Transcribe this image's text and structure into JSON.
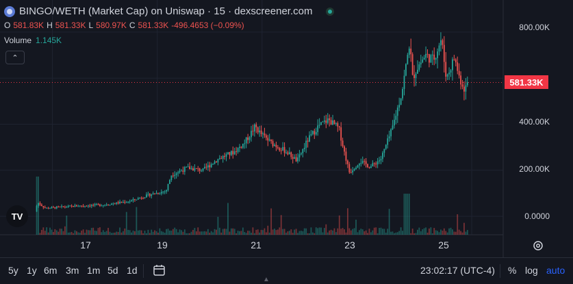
{
  "header": {
    "title": "BINGO/WETH (Market Cap) on Uniswap · 15 · dexscreener.com"
  },
  "ohlc": {
    "o_key": "O",
    "o_val": "581.83K",
    "h_key": "H",
    "h_val": "581.33K",
    "l_key": "L",
    "l_val": "580.97K",
    "c_key": "C",
    "c_val": "581.33K",
    "change": "-496.4653 (−0.09%)"
  },
  "volume": {
    "label": "Volume",
    "value": "1.145K"
  },
  "price_axis": [
    "800.00K",
    "400.00K",
    "200.00K",
    "0.0000"
  ],
  "price_axis_ticks": [
    800000,
    400000,
    200000,
    0
  ],
  "current_price": "581.33K",
  "current_price_value": 581330,
  "date_axis": [
    "17",
    "19",
    "21",
    "23",
    "25"
  ],
  "date_axis_ticks": [
    17,
    19,
    21,
    23,
    25
  ],
  "toolbar": {
    "timeframes": [
      "5y",
      "1y",
      "6m",
      "3m",
      "1m",
      "5d",
      "1d"
    ],
    "clock": "23:02:17 (UTC-4)",
    "percent": "%",
    "log": "log",
    "auto": "auto"
  },
  "colors": {
    "up": "#26a69a",
    "down": "#ef5350",
    "accent": "#2962ff",
    "price_tag": "#f23645"
  },
  "chart_data": {
    "type": "line",
    "x_start": 16.7,
    "x_end": 24.95,
    "price_path": [
      [
        16.7,
        20000
      ],
      [
        16.75,
        60000
      ],
      [
        16.9,
        35000
      ],
      [
        17.5,
        45000
      ],
      [
        18.0,
        50000
      ],
      [
        18.5,
        65000
      ],
      [
        18.9,
        95000
      ],
      [
        19.2,
        110000
      ],
      [
        19.3,
        180000
      ],
      [
        19.6,
        210000
      ],
      [
        19.9,
        200000
      ],
      [
        20.2,
        250000
      ],
      [
        20.5,
        280000
      ],
      [
        20.7,
        320000
      ],
      [
        20.9,
        390000
      ],
      [
        21.0,
        360000
      ],
      [
        21.2,
        320000
      ],
      [
        21.5,
        280000
      ],
      [
        21.7,
        240000
      ],
      [
        21.9,
        330000
      ],
      [
        22.1,
        390000
      ],
      [
        22.3,
        420000
      ],
      [
        22.5,
        380000
      ],
      [
        22.6,
        280000
      ],
      [
        22.7,
        190000
      ],
      [
        22.9,
        240000
      ],
      [
        23.1,
        215000
      ],
      [
        23.3,
        250000
      ],
      [
        23.5,
        370000
      ],
      [
        23.7,
        540000
      ],
      [
        23.85,
        760000
      ],
      [
        23.9,
        600000
      ],
      [
        24.0,
        650000
      ],
      [
        24.15,
        700000
      ],
      [
        24.3,
        680000
      ],
      [
        24.45,
        770000
      ],
      [
        24.55,
        600000
      ],
      [
        24.7,
        690000
      ],
      [
        24.8,
        600000
      ],
      [
        24.9,
        550000
      ],
      [
        24.95,
        581330
      ]
    ],
    "ylim": [
      -80000,
      880000
    ],
    "xlim": [
      16.0,
      25.6
    ],
    "grid": true
  }
}
